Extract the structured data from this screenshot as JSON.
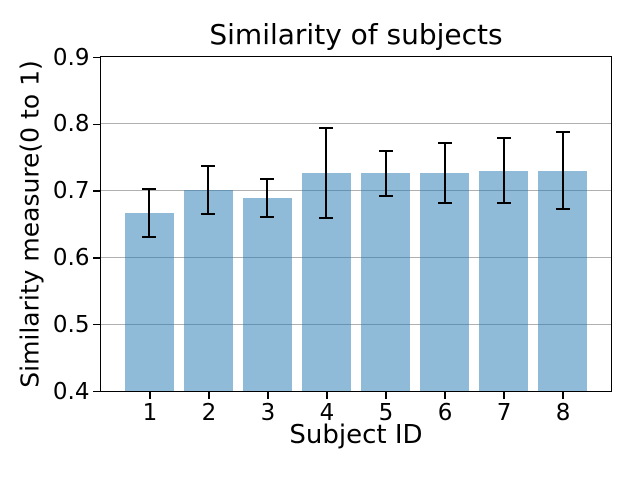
{
  "chart_data": {
    "type": "bar",
    "title": "Similarity of subjects",
    "xlabel": "Subject ID",
    "ylabel": "Similarity measure(0 to 1)",
    "categories": [
      "1",
      "2",
      "3",
      "4",
      "5",
      "6",
      "7",
      "8"
    ],
    "values": [
      0.666,
      0.701,
      0.689,
      0.726,
      0.726,
      0.726,
      0.73,
      0.73
    ],
    "errors": [
      0.036,
      0.036,
      0.029,
      0.067,
      0.034,
      0.045,
      0.048,
      0.057
    ],
    "ylim": [
      0.4,
      0.9
    ],
    "xlim": [
      0.18,
      8.82
    ],
    "yticks": [
      0.4,
      0.5,
      0.6,
      0.7,
      0.8,
      0.9
    ],
    "ytick_labels": [
      "0.4",
      "0.5",
      "0.6",
      "0.7",
      "0.8",
      "0.9"
    ],
    "grid": true,
    "legend": false,
    "bar_color": "#1f77b4",
    "bar_alpha": 0.5,
    "bar_fill_on_white": "#8fbbd9",
    "bar_width_fraction": 0.84,
    "error_color": "#000000",
    "grid_color": "#b0b0b0",
    "spine_color": "#000000",
    "background_color": "#ffffff"
  }
}
